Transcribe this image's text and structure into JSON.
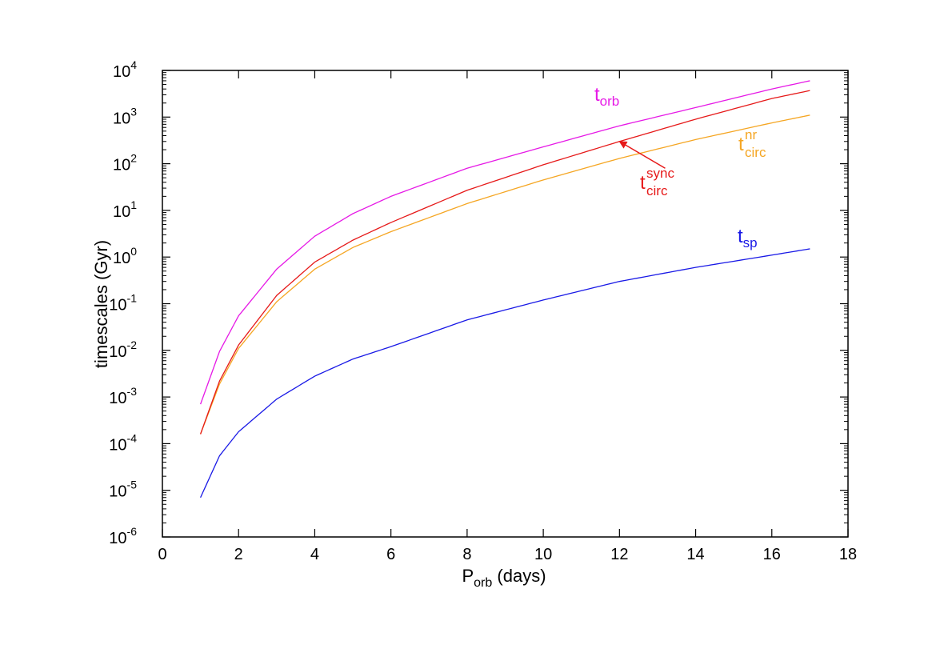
{
  "chart_data": {
    "type": "line",
    "xlabel": {
      "main": "P",
      "sub": "orb",
      "rest": " (days)"
    },
    "ylabel": "timescales (Gyr)",
    "xlim": [
      0,
      18
    ],
    "ylim": [
      1e-06,
      10000.0
    ],
    "yscale": "log",
    "grid": false,
    "xticks": [
      0,
      2,
      4,
      6,
      8,
      10,
      12,
      14,
      16,
      18
    ],
    "yticks": [
      {
        "value": 1e-06,
        "base": "10",
        "exp": "-6"
      },
      {
        "value": 1e-05,
        "base": "10",
        "exp": "-5"
      },
      {
        "value": 0.0001,
        "base": "10",
        "exp": "-4"
      },
      {
        "value": 0.001,
        "base": "10",
        "exp": "-3"
      },
      {
        "value": 0.01,
        "base": "10",
        "exp": "-2"
      },
      {
        "value": 0.1,
        "base": "10",
        "exp": "-1"
      },
      {
        "value": 1.0,
        "base": "10",
        "exp": "0"
      },
      {
        "value": 10.0,
        "base": "10",
        "exp": "1"
      },
      {
        "value": 100.0,
        "base": "10",
        "exp": "2"
      },
      {
        "value": 1000.0,
        "base": "10",
        "exp": "3"
      },
      {
        "value": 10000.0,
        "base": "10",
        "exp": "4"
      }
    ],
    "series": [
      {
        "id": "orb",
        "color": "#e619e6",
        "label": {
          "main": "t",
          "sub": "orb",
          "sup": ""
        },
        "x": [
          1,
          1.5,
          2,
          3,
          4,
          5,
          6,
          8,
          10,
          12,
          14,
          16,
          17
        ],
        "y": [
          0.0007,
          0.0095,
          0.055,
          0.55,
          2.8,
          8.5,
          20,
          80,
          230,
          650,
          1600,
          4000,
          6000
        ]
      },
      {
        "id": "circ-sync",
        "color": "#e61919",
        "label": {
          "main": "t",
          "sub": "circ",
          "sup": "sync"
        },
        "x": [
          1,
          1.5,
          2,
          3,
          4,
          5,
          6,
          8,
          10,
          12,
          14,
          16,
          17
        ],
        "y": [
          0.00016,
          0.0022,
          0.013,
          0.15,
          0.78,
          2.3,
          5.5,
          27,
          95,
          300,
          900,
          2500,
          3700
        ]
      },
      {
        "id": "circ-nr",
        "color": "#f5a623",
        "label": {
          "main": "t",
          "sub": "circ",
          "sup": "nr"
        },
        "x": [
          1,
          1.5,
          2,
          3,
          4,
          5,
          6,
          8,
          10,
          12,
          14,
          16,
          17
        ],
        "y": [
          0.00016,
          0.0019,
          0.011,
          0.11,
          0.55,
          1.6,
          3.5,
          14,
          45,
          130,
          330,
          750,
          1100
        ]
      },
      {
        "id": "sp",
        "color": "#1919e6",
        "label": {
          "main": "t",
          "sub": "sp",
          "sup": ""
        },
        "x": [
          1,
          1.5,
          2,
          3,
          4,
          5,
          6,
          8,
          10,
          12,
          14,
          16,
          17
        ],
        "y": [
          7e-06,
          5.5e-05,
          0.00018,
          0.0009,
          0.0028,
          0.0065,
          0.012,
          0.045,
          0.12,
          0.3,
          0.6,
          1.1,
          1.5
        ]
      }
    ],
    "annotation": {
      "type": "arrow",
      "target_series": "circ-sync",
      "color": "#e61919",
      "from": [
        13.2,
        80
      ],
      "to": [
        12.0,
        300
      ]
    }
  }
}
